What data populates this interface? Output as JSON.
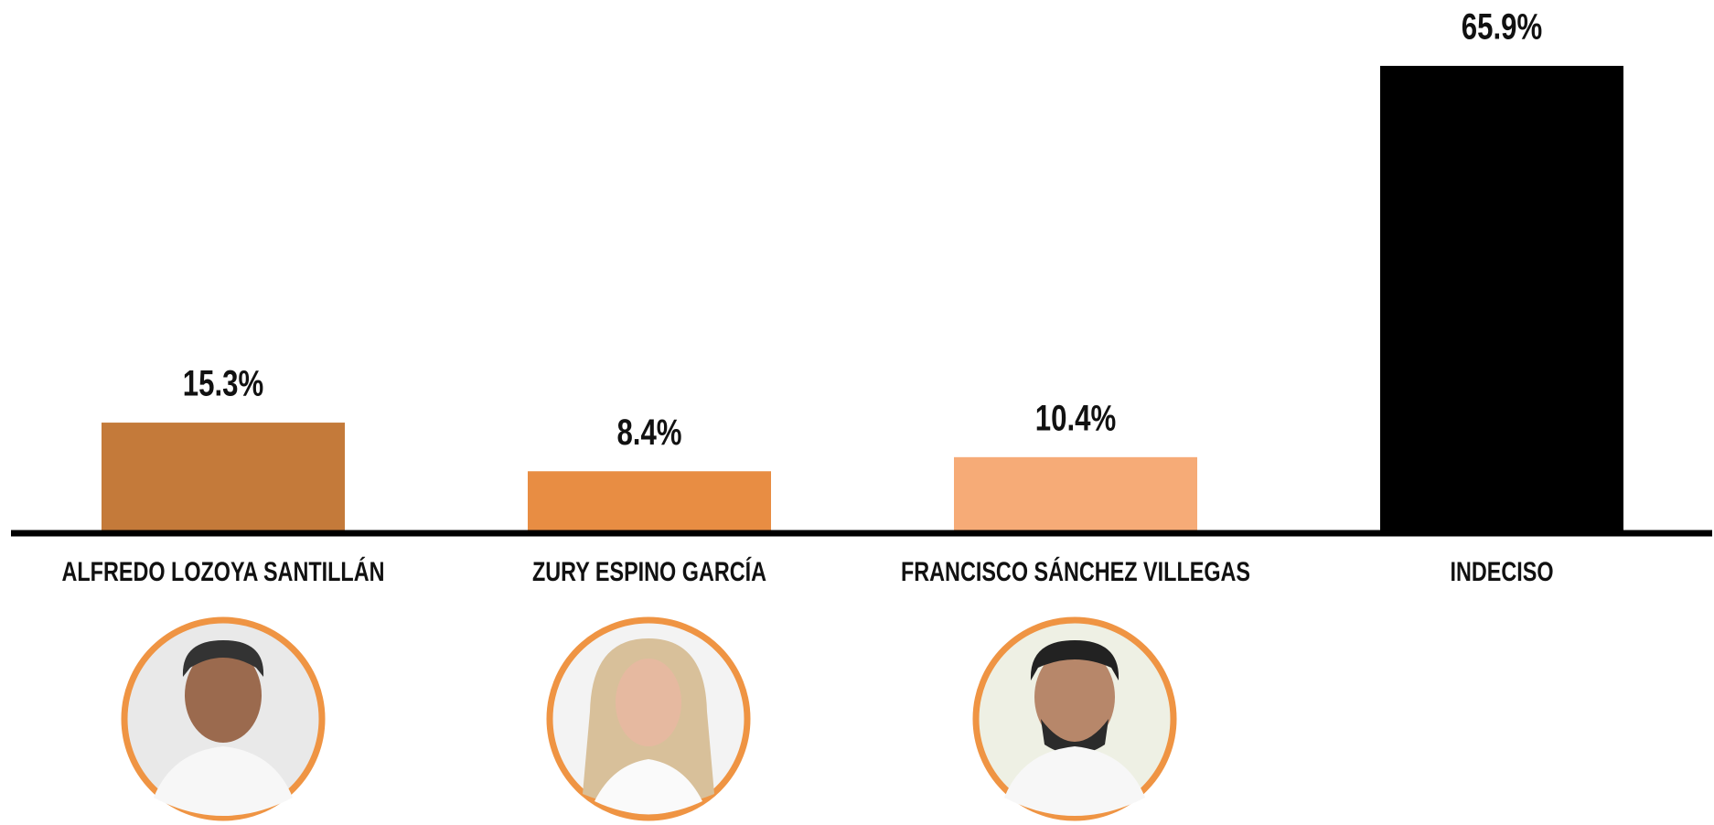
{
  "chart_data": {
    "type": "bar",
    "categories": [
      "ALFREDO LOZOYA SANTILLÁN",
      "ZURY ESPINO GARCÍA",
      "FRANCISCO SÁNCHEZ VILLEGAS",
      "INDECISO"
    ],
    "values": [
      15.3,
      8.4,
      10.4,
      65.9
    ],
    "value_labels": [
      "15.3%",
      "8.4%",
      "10.4%",
      "65.9%"
    ],
    "colors": [
      "#c47a3a",
      "#e88d43",
      "#f6ab77",
      "#000000"
    ]
  }
}
